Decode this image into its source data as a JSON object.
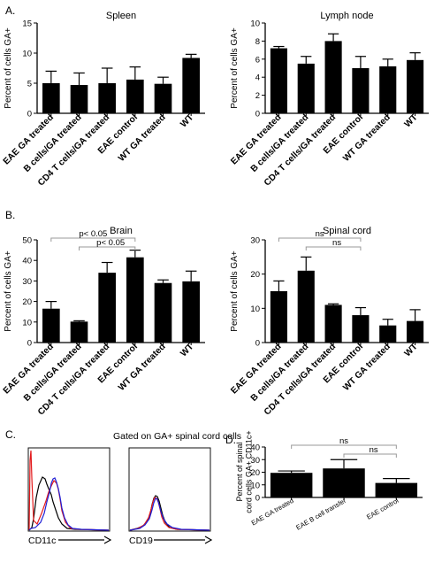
{
  "panel_labels": {
    "a": "A.",
    "b": "B.",
    "c": "C.",
    "d": "D."
  },
  "flow": {
    "caption": "Gated on GA+ spinal cord cells",
    "left_xlabel": "CD11c",
    "right_xlabel": "CD19",
    "colors": [
      "#000000",
      "#e31a1c",
      "#1f1fd6"
    ]
  },
  "chart_data": [
    {
      "id": "spleen",
      "type": "bar",
      "title": "Spleen",
      "ylabel": "Percent of cells GA+",
      "categories": [
        "EAE GA treated",
        "B cells/GA treated",
        "CD4 T cells/GA treated",
        "EAE control",
        "WT GA treated",
        "WT"
      ],
      "values": [
        5.0,
        4.7,
        5.0,
        5.6,
        4.9,
        9.2
      ],
      "errors": [
        2.0,
        2.0,
        2.5,
        2.1,
        1.1,
        0.6
      ],
      "ylim": [
        0,
        15
      ],
      "yticks": [
        0,
        5,
        10,
        15
      ],
      "grid": false,
      "brackets": []
    },
    {
      "id": "lymph",
      "type": "bar",
      "title": "Lymph node",
      "ylabel": "Percent of cells GA+",
      "categories": [
        "EAE GA treated",
        "B cells/GA treated",
        "CD4 T cells/GA treated",
        "EAE control",
        "WT GA treated",
        "WT"
      ],
      "values": [
        7.2,
        5.5,
        8.0,
        5.0,
        5.2,
        5.9
      ],
      "errors": [
        0.2,
        0.8,
        0.8,
        1.3,
        0.8,
        0.8
      ],
      "ylim": [
        0,
        10
      ],
      "yticks": [
        0,
        2,
        4,
        6,
        8,
        10
      ],
      "grid": false,
      "brackets": []
    },
    {
      "id": "brain",
      "type": "bar",
      "title": "Brain",
      "ylabel": "Percent of cells GA+",
      "categories": [
        "EAE GA treated",
        "B cells/GA treated",
        "CD4 T cells/GA treated",
        "EAE control",
        "WT GA treated",
        "WT"
      ],
      "values": [
        16.5,
        10.2,
        34.0,
        41.5,
        29.0,
        29.8
      ],
      "errors": [
        3.5,
        0.4,
        5.0,
        3.5,
        1.5,
        5.0
      ],
      "ylim": [
        0,
        50
      ],
      "yticks": [
        0,
        10,
        20,
        30,
        40,
        50
      ],
      "grid": false,
      "brackets": [
        {
          "from": 0,
          "to": 3,
          "label": "p< 0.05"
        },
        {
          "from": 1,
          "to": 3,
          "label": "p< 0.05"
        }
      ]
    },
    {
      "id": "spinal",
      "type": "bar",
      "title": "Spinal cord",
      "ylabel": "Percent of cells GA+",
      "categories": [
        "EAE GA treated",
        "B cells/GA treated",
        "CD4 T cells/GA treated",
        "EAE control",
        "WT GA treated",
        "WT"
      ],
      "values": [
        15.0,
        21.0,
        11.0,
        8.0,
        5.0,
        6.3
      ],
      "errors": [
        3.0,
        4.0,
        0.3,
        2.2,
        1.8,
        3.3
      ],
      "ylim": [
        0,
        30
      ],
      "yticks": [
        0,
        10,
        20,
        30
      ],
      "grid": false,
      "brackets": [
        {
          "from": 0,
          "to": 3,
          "label": "ns"
        },
        {
          "from": 1,
          "to": 3,
          "label": "ns"
        }
      ]
    },
    {
      "id": "d",
      "type": "bar",
      "title": "",
      "ylabel": "Percent of spinal cord cells GA+ CD11c+",
      "categories": [
        "EAE GA treated",
        "EAE B cell transfer",
        "EAE control"
      ],
      "values": [
        19.5,
        23.0,
        11.5
      ],
      "errors": [
        1.5,
        7.0,
        3.5
      ],
      "ylim": [
        0,
        40
      ],
      "yticks": [
        0,
        10,
        20,
        30,
        40
      ],
      "grid": false,
      "brackets": [
        {
          "from": 0,
          "to": 2,
          "label": "ns"
        },
        {
          "from": 1,
          "to": 2,
          "label": "ns"
        }
      ]
    }
  ]
}
